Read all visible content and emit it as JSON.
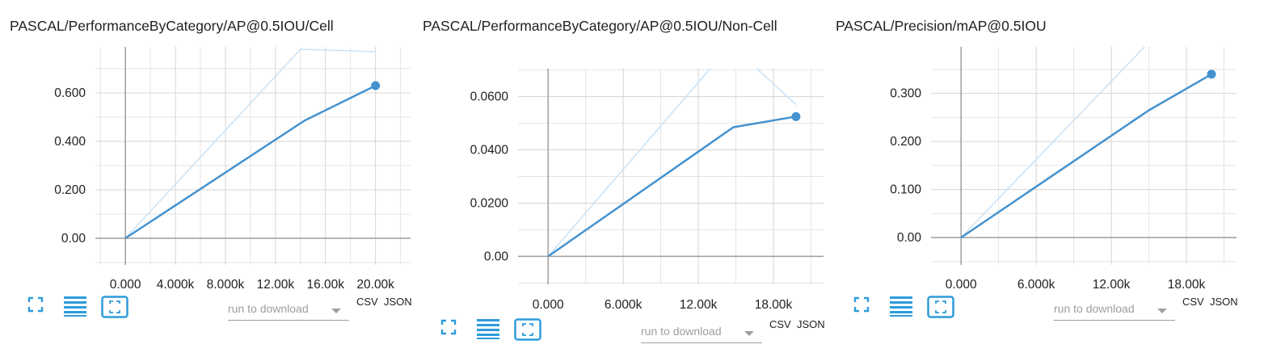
{
  "colors": {
    "main_line": "#4492cf",
    "ghost_line": "#c9e2f6",
    "grid": "#e4e4e4",
    "axis": "#9e9e9e",
    "icon": "#2d9cdb"
  },
  "icons": {
    "expand": "fit-to-screen-icon",
    "data_table": "data-table-icon",
    "fit_domain": "fit-domain-icon"
  },
  "cards": [
    {
      "title": "PASCAL/PerformanceByCategory/AP@0.5IOU/Cell",
      "toolbar": {
        "download_placeholder": "run to download",
        "csv_label": "CSV",
        "json_label": "JSON"
      },
      "chart_data": {
        "type": "line",
        "title": "PASCAL/PerformanceByCategory/AP@0.5IOU/Cell",
        "xlim": [
          -2400,
          22800
        ],
        "ylim": [
          -0.11,
          0.79
        ],
        "x_ticks": [
          0,
          4000,
          8000,
          12000,
          16000,
          20000
        ],
        "x_tick_labels": [
          "0.000",
          "4.000k",
          "8.000k",
          "12.00k",
          "16.00k",
          "20.00k"
        ],
        "y_ticks": [
          0,
          0.2,
          0.4,
          0.6
        ],
        "y_tick_labels": [
          "0.00",
          "0.200",
          "0.400",
          "0.600"
        ],
        "grid": true,
        "series": [
          {
            "style": "smoothed",
            "x": [
              0,
              14300,
              20000
            ],
            "y": [
              0,
              0.485,
              0.63
            ]
          },
          {
            "style": "raw",
            "x": [
              0,
              14000,
              20000
            ],
            "y": [
              0,
              0.78,
              0.77
            ]
          }
        ]
      }
    },
    {
      "title": "PASCAL/PerformanceByCategory/AP@0.5IOU/Non-Cell",
      "toolbar": {
        "download_placeholder": "run to download",
        "csv_label": "CSV",
        "json_label": "JSON"
      },
      "chart_data": {
        "type": "line",
        "title": "PASCAL/PerformanceByCategory/AP@0.5IOU/Non-Cell",
        "xlim": [
          -2400,
          22000
        ],
        "ylim": [
          -0.0105,
          0.0705
        ],
        "x_ticks": [
          0,
          6000,
          12000,
          18000
        ],
        "x_tick_labels": [
          "0.000",
          "6.000k",
          "12.00k",
          "18.00k"
        ],
        "y_ticks": [
          0,
          0.02,
          0.04,
          0.06
        ],
        "y_tick_labels": [
          "0.00",
          "0.0200",
          "0.0400",
          "0.0600"
        ],
        "grid": true,
        "series": [
          {
            "style": "smoothed",
            "x": [
              0,
              14800,
              19800
            ],
            "y": [
              0,
              0.0485,
              0.0525
            ]
          },
          {
            "style": "raw",
            "x": [
              0,
              14600,
              19800
            ],
            "y": [
              0,
              0.0795,
              0.057
            ]
          }
        ]
      }
    },
    {
      "title": "PASCAL/Precision/mAP@0.5IOU",
      "toolbar": {
        "download_placeholder": "run to download",
        "csv_label": "CSV",
        "json_label": "JSON"
      },
      "chart_data": {
        "type": "line",
        "title": "PASCAL/Precision/mAP@0.5IOU",
        "xlim": [
          -2400,
          22000
        ],
        "ylim": [
          -0.057,
          0.397
        ],
        "x_ticks": [
          0,
          6000,
          12000,
          18000
        ],
        "x_tick_labels": [
          "0.000",
          "6.000k",
          "12.00k",
          "18.00k"
        ],
        "y_ticks": [
          0,
          0.1,
          0.2,
          0.3
        ],
        "y_tick_labels": [
          "0.00",
          "0.100",
          "0.200",
          "0.300"
        ],
        "grid": true,
        "series": [
          {
            "style": "smoothed",
            "x": [
              0,
              15000,
              20000
            ],
            "y": [
              0,
              0.265,
              0.34
            ]
          },
          {
            "style": "raw",
            "x": [
              0,
              15500,
              20000
            ],
            "y": [
              0,
              0.42,
              0.5
            ]
          }
        ]
      }
    }
  ]
}
